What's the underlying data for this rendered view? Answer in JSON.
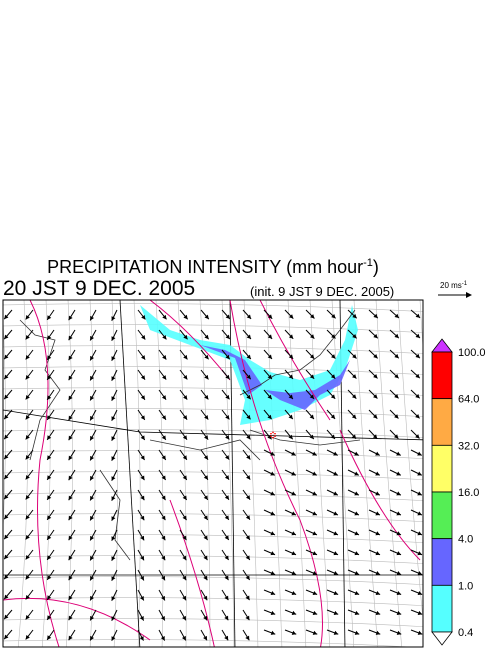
{
  "header": {
    "title": "PRECIPITATION INTENSITY (mm hour",
    "title_superscript": "-1",
    "title_end": ")",
    "valid_time": "20 JST 9 DEC. 2005",
    "init_time": "(init. 9 JST 9 DEC. 2005)"
  },
  "wind_reference": {
    "label": "20 ms",
    "label_superscript": "-1"
  },
  "legend": {
    "levels": [
      "100.0",
      "64.0",
      "32.0",
      "16.0",
      "4.0",
      "1.0",
      "0.4"
    ],
    "colors": [
      "#cc33ff",
      "#ff0000",
      "#ffaa44",
      "#ffff66",
      "#55ee55",
      "#6666ff",
      "#55ffff",
      "#ffffff"
    ]
  }
}
